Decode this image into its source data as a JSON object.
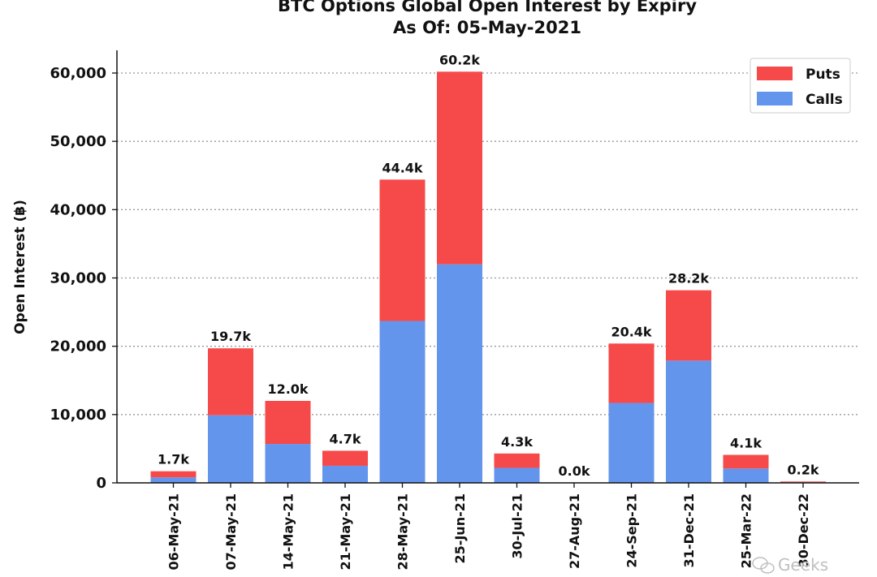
{
  "chart_data": {
    "type": "bar",
    "stacked": true,
    "title": "BTC Options Global Open Interest by Expiry",
    "subtitle": "As Of: 05-May-2021",
    "xlabel": "",
    "ylabel": "Open Interest (฿)",
    "ylim": [
      0,
      63000
    ],
    "yticks": [
      0,
      10000,
      20000,
      30000,
      40000,
      50000,
      60000
    ],
    "ytick_labels": [
      "0",
      "10,000",
      "20,000",
      "30,000",
      "40,000",
      "50,000",
      "60,000"
    ],
    "grid": true,
    "legend_position": "top-right",
    "categories": [
      "06-May-21",
      "07-May-21",
      "14-May-21",
      "21-May-21",
      "28-May-21",
      "25-Jun-21",
      "30-Jul-21",
      "27-Aug-21",
      "24-Sep-21",
      "31-Dec-21",
      "25-Mar-22",
      "30-Dec-22"
    ],
    "series": [
      {
        "name": "Calls",
        "color": "#6495ed",
        "values": [
          800,
          9900,
          5700,
          2500,
          23700,
          32000,
          2200,
          0,
          11700,
          17900,
          2100,
          100
        ]
      },
      {
        "name": "Puts",
        "color": "#f64a4a",
        "values": [
          900,
          9800,
          6300,
          2200,
          20700,
          28200,
          2100,
          0,
          8700,
          10300,
          2000,
          100
        ]
      }
    ],
    "legend": [
      "Puts",
      "Calls"
    ],
    "totals_labels": [
      "1.7k",
      "19.7k",
      "12.0k",
      "4.7k",
      "44.4k",
      "60.2k",
      "4.3k",
      "0.0k",
      "20.4k",
      "28.2k",
      "4.1k",
      "0.2k"
    ]
  },
  "watermark": "Geeks"
}
